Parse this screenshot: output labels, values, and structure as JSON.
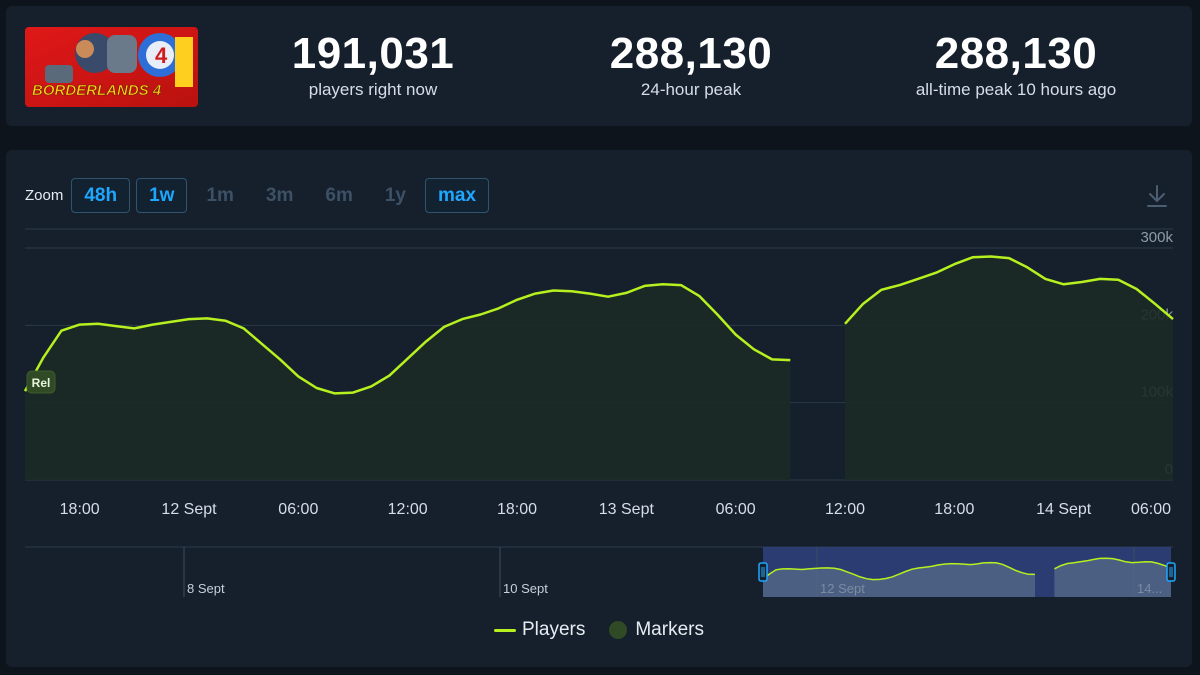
{
  "stats": {
    "current": {
      "value": "191,031",
      "label": "players right now"
    },
    "peak24h": {
      "value": "288,130",
      "label": "24-hour peak"
    },
    "alltime": {
      "value": "288,130",
      "label": "all-time peak 10 hours ago"
    }
  },
  "banner": {
    "text": "BORDERLANDS 4"
  },
  "zoom": {
    "label": "Zoom",
    "buttons": [
      {
        "label": "48h",
        "active": true
      },
      {
        "label": "1w",
        "active": true
      },
      {
        "label": "1m",
        "active": false
      },
      {
        "label": "3m",
        "active": false
      },
      {
        "label": "6m",
        "active": false
      },
      {
        "label": "1y",
        "active": false
      },
      {
        "label": "max",
        "active": true
      }
    ]
  },
  "legend": {
    "players": "Players",
    "markers": "Markers"
  },
  "colors": {
    "line": "#b6f01e",
    "marker": "#2f4a25",
    "accent": "#1ea7ff"
  },
  "chart_data": {
    "type": "line",
    "marker_label": "Rel",
    "xlabels": [
      "18:00",
      "12 Sept",
      "06:00",
      "12:00",
      "18:00",
      "13 Sept",
      "06:00",
      "12:00",
      "18:00",
      "14 Sept",
      "06:00"
    ],
    "ylabels": [
      "300k",
      "200k",
      "100k",
      "0"
    ],
    "ylim": [
      0,
      300000
    ],
    "series": [
      {
        "name": "Players",
        "segments": [
          [
            [
              "2025-09-11 15:00",
              115000
            ],
            [
              "2025-09-11 16:00",
              158000
            ],
            [
              "2025-09-11 17:00",
              193000
            ],
            [
              "2025-09-11 18:00",
              201000
            ],
            [
              "2025-09-11 19:00",
              202000
            ],
            [
              "2025-09-11 20:00",
              199000
            ],
            [
              "2025-09-11 21:00",
              196000
            ],
            [
              "2025-09-11 22:00",
              201000
            ],
            [
              "2025-09-12 00:00",
              208000
            ],
            [
              "2025-09-12 01:00",
              209000
            ],
            [
              "2025-09-12 02:00",
              206000
            ],
            [
              "2025-09-12 03:00",
              196000
            ],
            [
              "2025-09-12 04:00",
              176000
            ],
            [
              "2025-09-12 05:00",
              156000
            ],
            [
              "2025-09-12 06:00",
              134000
            ],
            [
              "2025-09-12 07:00",
              119000
            ],
            [
              "2025-09-12 08:00",
              112000
            ],
            [
              "2025-09-12 09:00",
              113000
            ],
            [
              "2025-09-12 10:00",
              121000
            ],
            [
              "2025-09-12 11:00",
              135000
            ],
            [
              "2025-09-12 12:00",
              157000
            ],
            [
              "2025-09-12 13:00",
              179000
            ],
            [
              "2025-09-12 14:00",
              198000
            ],
            [
              "2025-09-12 15:00",
              208000
            ],
            [
              "2025-09-12 16:00",
              214000
            ],
            [
              "2025-09-12 17:00",
              222000
            ],
            [
              "2025-09-12 18:00",
              233000
            ],
            [
              "2025-09-12 19:00",
              241000
            ],
            [
              "2025-09-12 20:00",
              245000
            ],
            [
              "2025-09-12 21:00",
              244000
            ],
            [
              "2025-09-12 22:00",
              241000
            ],
            [
              "2025-09-12 23:00",
              237000
            ],
            [
              "2025-09-13 00:00",
              242000
            ],
            [
              "2025-09-13 01:00",
              251000
            ],
            [
              "2025-09-13 02:00",
              253000
            ],
            [
              "2025-09-13 03:00",
              252000
            ],
            [
              "2025-09-13 04:00",
              238000
            ],
            [
              "2025-09-13 05:00",
              214000
            ],
            [
              "2025-09-13 06:00",
              188000
            ],
            [
              "2025-09-13 07:00",
              169000
            ],
            [
              "2025-09-13 08:00",
              156000
            ],
            [
              "2025-09-13 09:00",
              155000
            ]
          ],
          [
            [
              "2025-09-13 12:00",
              202000
            ],
            [
              "2025-09-13 13:00",
              228000
            ],
            [
              "2025-09-13 14:00",
              246000
            ],
            [
              "2025-09-13 15:00",
              252000
            ],
            [
              "2025-09-13 16:00",
              260000
            ],
            [
              "2025-09-13 17:00",
              268000
            ],
            [
              "2025-09-13 18:00",
              279000
            ],
            [
              "2025-09-13 19:00",
              288000
            ],
            [
              "2025-09-13 20:00",
              289000
            ],
            [
              "2025-09-13 21:00",
              287000
            ],
            [
              "2025-09-13 22:00",
              275000
            ],
            [
              "2025-09-13 23:00",
              260000
            ],
            [
              "2025-09-14 00:00",
              253000
            ],
            [
              "2025-09-14 01:00",
              256000
            ],
            [
              "2025-09-14 02:00",
              260000
            ],
            [
              "2025-09-14 03:00",
              259000
            ],
            [
              "2025-09-14 04:00",
              247000
            ],
            [
              "2025-09-14 05:00",
              228000
            ],
            [
              "2025-09-14 06:00",
              208000
            ]
          ]
        ]
      }
    ],
    "navigator": {
      "labels": [
        "8 Sept",
        "10 Sept",
        "12 Sept",
        "14..."
      ],
      "selection": [
        "2025-09-11 15:00",
        "2025-09-14 06:00"
      ]
    }
  }
}
